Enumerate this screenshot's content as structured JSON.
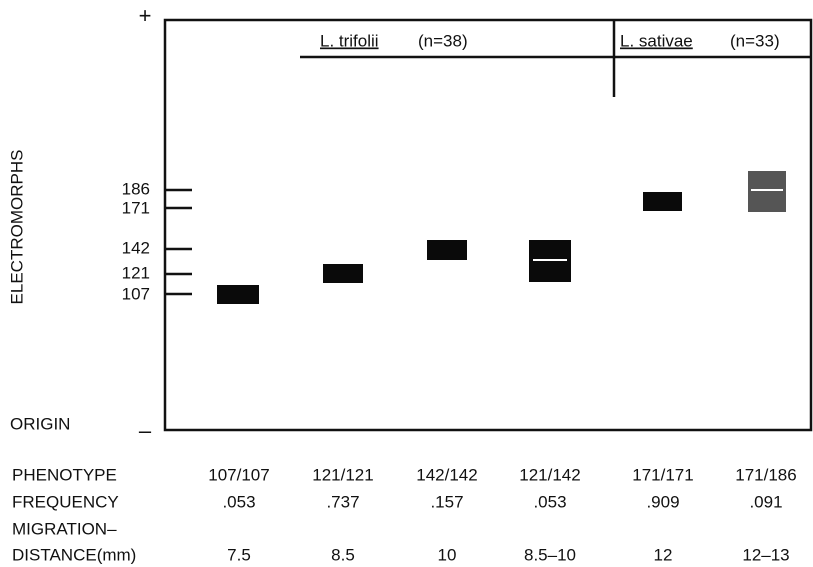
{
  "markers": {
    "plus": "+",
    "minus": "–"
  },
  "y_axis": {
    "label": "ELECTROMORPHS",
    "origin": "ORIGIN",
    "ticks": [
      "186",
      "171",
      "142",
      "121",
      "107"
    ]
  },
  "groups": [
    {
      "name": "L. trifolii",
      "n": "(n=38)"
    },
    {
      "name": "L. sativae",
      "n": "(n=33)"
    }
  ],
  "table": {
    "row_labels": [
      "PHENOTYPE",
      "FREQUENCY",
      "MIGRATION–",
      "DISTANCE(mm)"
    ],
    "rows": [
      [
        "107/107",
        "121/121",
        "142/142",
        "121/142",
        "171/171",
        "171/186"
      ],
      [
        ".053",
        ".737",
        ".157",
        ".053",
        ".909",
        ".091"
      ],
      [
        "7.5",
        "8.5",
        "10",
        "8.5–10",
        "12",
        "12–13"
      ]
    ]
  }
}
